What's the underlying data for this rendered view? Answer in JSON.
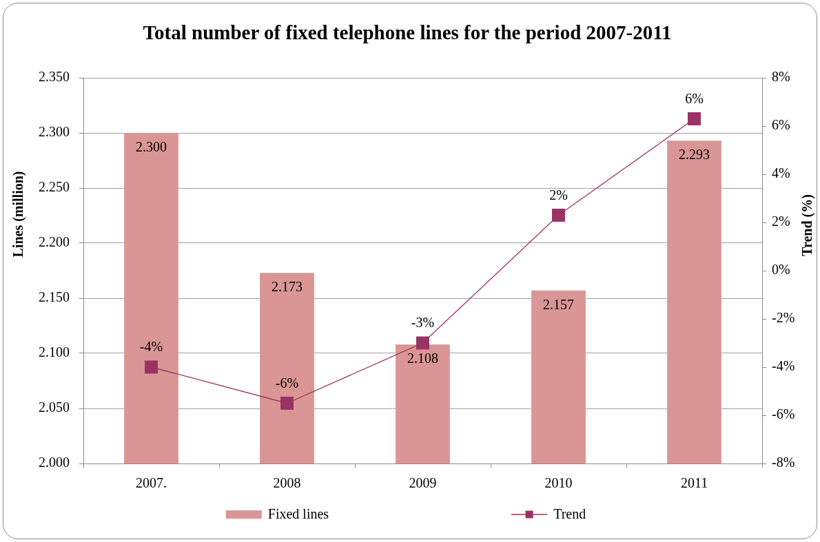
{
  "chart_data": {
    "type": "bar",
    "title": "Total number of fixed telephone lines for the period 2007-2011",
    "categories": [
      "2007.",
      "2008",
      "2009",
      "2010",
      "2011"
    ],
    "series": [
      {
        "name": "Fixed lines",
        "color": "#d99694",
        "values": [
          2.3,
          2.173,
          2.108,
          2.157,
          2.293
        ],
        "value_labels": [
          "2.300",
          "2.173",
          "2.108",
          "2.157",
          "2.293"
        ]
      },
      {
        "name": "Trend",
        "type": "line",
        "axis": "y2",
        "color": "#993366",
        "values": [
          -4.0,
          -5.5,
          -3.0,
          2.3,
          6.3
        ],
        "value_labels": [
          "-4%",
          "-6%",
          "-3%",
          "2%",
          "6%"
        ]
      }
    ],
    "ylabel": "Lines (million)",
    "y2label": "Trend (%)",
    "ylim": [
      2.0,
      2.35
    ],
    "yticks": [
      {
        "value": 2.0,
        "label": "2.000"
      },
      {
        "value": 2.05,
        "label": "2.050"
      },
      {
        "value": 2.1,
        "label": "2.100"
      },
      {
        "value": 2.15,
        "label": "2.150"
      },
      {
        "value": 2.2,
        "label": "2.200"
      },
      {
        "value": 2.25,
        "label": "2.250"
      },
      {
        "value": 2.3,
        "label": "2.300"
      },
      {
        "value": 2.35,
        "label": "2.350"
      }
    ],
    "y2lim": [
      -8,
      8
    ],
    "y2ticks": [
      {
        "value": -8,
        "label": "-8%"
      },
      {
        "value": -6,
        "label": "-6%"
      },
      {
        "value": -4,
        "label": "-4%"
      },
      {
        "value": -2,
        "label": "-2%"
      },
      {
        "value": 0,
        "label": "0%"
      },
      {
        "value": 2,
        "label": "2%"
      },
      {
        "value": 4,
        "label": "4%"
      },
      {
        "value": 6,
        "label": "6%"
      },
      {
        "value": 8,
        "label": "8%"
      }
    ],
    "grid": "y",
    "legend": "bottom",
    "marker": "square"
  }
}
